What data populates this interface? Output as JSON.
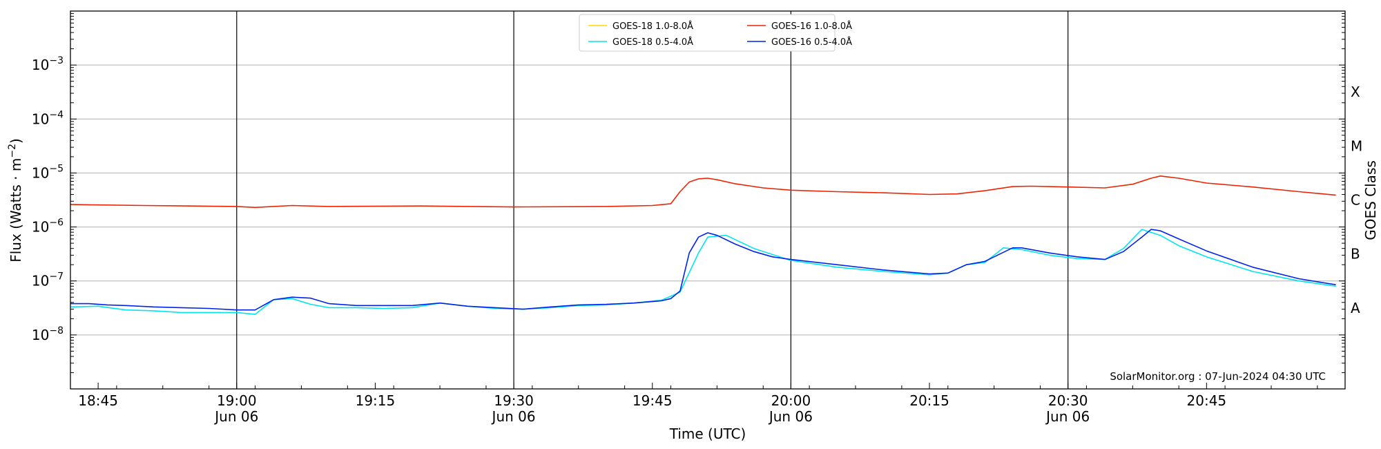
{
  "chart_data": {
    "type": "line",
    "title": "",
    "xlabel": "Time (UTC)",
    "ylabel": "Flux (Watts · m",
    "ylabel_sup": "−2",
    "ylabel_tail": ")",
    "y2label": "GOES Class",
    "y_scale": "log",
    "xlim": [
      "2024-06-06 18:42",
      "2024-06-06 21:00"
    ],
    "ylim": [
      1e-09,
      0.01
    ],
    "grid": "horizontal",
    "legend_position": "top-center",
    "credit": "SolarMonitor.org : 07-Jun-2024 04:30 UTC",
    "x_ticks": [
      {
        "time": "2024-06-06 18:45",
        "label": "18:45",
        "date": ""
      },
      {
        "time": "2024-06-06 19:00",
        "label": "19:00",
        "date": "Jun 06"
      },
      {
        "time": "2024-06-06 19:15",
        "label": "19:15",
        "date": ""
      },
      {
        "time": "2024-06-06 19:30",
        "label": "19:30",
        "date": "Jun 06"
      },
      {
        "time": "2024-06-06 19:45",
        "label": "19:45",
        "date": ""
      },
      {
        "time": "2024-06-06 20:00",
        "label": "20:00",
        "date": "Jun 06"
      },
      {
        "time": "2024-06-06 20:15",
        "label": "20:15",
        "date": ""
      },
      {
        "time": "2024-06-06 20:30",
        "label": "20:30",
        "date": "Jun 06"
      },
      {
        "time": "2024-06-06 20:45",
        "label": "20:45",
        "date": ""
      }
    ],
    "vertical_markers": [
      "2024-06-06 19:00",
      "2024-06-06 19:30",
      "2024-06-06 20:00",
      "2024-06-06 20:30"
    ],
    "y_ticks": [
      {
        "value": 1e-08,
        "base": "10",
        "exp": "−8"
      },
      {
        "value": 1e-07,
        "base": "10",
        "exp": "−7"
      },
      {
        "value": 1e-06,
        "base": "10",
        "exp": "−6"
      },
      {
        "value": 1e-05,
        "base": "10",
        "exp": "−5"
      },
      {
        "value": 0.0001,
        "base": "10",
        "exp": "−4"
      },
      {
        "value": 0.001,
        "base": "10",
        "exp": "−3"
      }
    ],
    "goes_classes": [
      {
        "label": "A",
        "flux": 1e-08
      },
      {
        "label": "B",
        "flux": 1e-07
      },
      {
        "label": "C",
        "flux": 1e-06
      },
      {
        "label": "M",
        "flux": 1e-05
      },
      {
        "label": "X",
        "flux": 0.0001
      }
    ],
    "series": [
      {
        "name": "GOES-18 1.0-8.0Å",
        "color": "#ffd700",
        "x": [
          "2024-06-06 18:42"
        ],
        "y": [
          2.5e-06
        ]
      },
      {
        "name": "GOES-18 0.5-4.0Å",
        "color": "#00e5ee",
        "x": [
          "2024-06-06 18:42",
          "2024-06-06 18:45",
          "2024-06-06 18:48",
          "2024-06-06 18:51",
          "2024-06-06 18:54",
          "2024-06-06 18:57",
          "2024-06-06 19:00",
          "2024-06-06 19:02",
          "2024-06-06 19:04",
          "2024-06-06 19:06",
          "2024-06-06 19:08",
          "2024-06-06 19:10",
          "2024-06-06 19:13",
          "2024-06-06 19:16",
          "2024-06-06 19:19",
          "2024-06-06 19:22",
          "2024-06-06 19:25",
          "2024-06-06 19:28",
          "2024-06-06 19:31",
          "2024-06-06 19:34",
          "2024-06-06 19:37",
          "2024-06-06 19:40",
          "2024-06-06 19:43",
          "2024-06-06 19:46",
          "2024-06-06 19:48",
          "2024-06-06 19:50",
          "2024-06-06 19:51",
          "2024-06-06 19:53",
          "2024-06-06 19:56",
          "2024-06-06 20:00",
          "2024-06-06 20:05",
          "2024-06-06 20:10",
          "2024-06-06 20:15",
          "2024-06-06 20:17",
          "2024-06-06 20:19",
          "2024-06-06 20:21",
          "2024-06-06 20:23",
          "2024-06-06 20:25",
          "2024-06-06 20:28",
          "2024-06-06 20:31",
          "2024-06-06 20:34",
          "2024-06-06 20:36",
          "2024-06-06 20:38",
          "2024-06-06 20:40",
          "2024-06-06 20:42",
          "2024-06-06 20:45",
          "2024-06-06 20:50",
          "2024-06-06 20:55",
          "2024-06-06 20:59"
        ],
        "y": [
          3.3e-08,
          3.4e-08,
          2.9e-08,
          2.8e-08,
          2.6e-08,
          2.6e-08,
          2.6e-08,
          2.4e-08,
          4.5e-08,
          4.7e-08,
          3.7e-08,
          3.2e-08,
          3.2e-08,
          3.1e-08,
          3.2e-08,
          3.9e-08,
          3.4e-08,
          3.1e-08,
          3e-08,
          3.2e-08,
          3.5e-08,
          3.6e-08,
          3.9e-08,
          4.4e-08,
          6.2e-08,
          3.3e-07,
          6.5e-07,
          7e-07,
          4e-07,
          2.4e-07,
          1.8e-07,
          1.5e-07,
          1.3e-07,
          1.4e-07,
          2e-07,
          2.2e-07,
          4.1e-07,
          3.8e-07,
          3e-07,
          2.6e-07,
          2.5e-07,
          4e-07,
          9e-07,
          7e-07,
          4.5e-07,
          2.8e-07,
          1.5e-07,
          1e-07,
          8e-08
        ]
      },
      {
        "name": "GOES-16 1.0-8.0Å",
        "color": "#ee2200",
        "x": [
          "2024-06-06 18:42",
          "2024-06-06 18:50",
          "2024-06-06 19:00",
          "2024-06-06 19:02",
          "2024-06-06 19:06",
          "2024-06-06 19:10",
          "2024-06-06 19:20",
          "2024-06-06 19:30",
          "2024-06-06 19:40",
          "2024-06-06 19:45",
          "2024-06-06 19:47",
          "2024-06-06 19:48",
          "2024-06-06 19:49",
          "2024-06-06 19:50",
          "2024-06-06 19:51",
          "2024-06-06 19:52",
          "2024-06-06 19:54",
          "2024-06-06 19:57",
          "2024-06-06 20:00",
          "2024-06-06 20:05",
          "2024-06-06 20:10",
          "2024-06-06 20:15",
          "2024-06-06 20:18",
          "2024-06-06 20:21",
          "2024-06-06 20:24",
          "2024-06-06 20:26",
          "2024-06-06 20:30",
          "2024-06-06 20:34",
          "2024-06-06 20:37",
          "2024-06-06 20:39",
          "2024-06-06 20:40",
          "2024-06-06 20:42",
          "2024-06-06 20:45",
          "2024-06-06 20:50",
          "2024-06-06 20:55",
          "2024-06-06 20:59"
        ],
        "y": [
          2.6e-06,
          2.5e-06,
          2.4e-06,
          2.3e-06,
          2.5e-06,
          2.4e-06,
          2.45e-06,
          2.35e-06,
          2.4e-06,
          2.5e-06,
          2.7e-06,
          4.5e-06,
          6.8e-06,
          7.8e-06,
          8e-06,
          7.5e-06,
          6.3e-06,
          5.3e-06,
          4.8e-06,
          4.5e-06,
          4.3e-06,
          4e-06,
          4.1e-06,
          4.7e-06,
          5.6e-06,
          5.7e-06,
          5.5e-06,
          5.3e-06,
          6.2e-06,
          8e-06,
          8.8e-06,
          8e-06,
          6.5e-06,
          5.5e-06,
          4.5e-06,
          3.9e-06
        ]
      },
      {
        "name": "GOES-16 0.5-4.0Å",
        "color": "#0022ee",
        "x": [
          "2024-06-06 18:42",
          "2024-06-06 18:44",
          "2024-06-06 18:46",
          "2024-06-06 18:48",
          "2024-06-06 18:51",
          "2024-06-06 18:54",
          "2024-06-06 18:57",
          "2024-06-06 19:00",
          "2024-06-06 19:02",
          "2024-06-06 19:04",
          "2024-06-06 19:06",
          "2024-06-06 19:08",
          "2024-06-06 19:10",
          "2024-06-06 19:13",
          "2024-06-06 19:16",
          "2024-06-06 19:19",
          "2024-06-06 19:22",
          "2024-06-06 19:25",
          "2024-06-06 19:28",
          "2024-06-06 19:31",
          "2024-06-06 19:34",
          "2024-06-06 19:37",
          "2024-06-06 19:40",
          "2024-06-06 19:43",
          "2024-06-06 19:46",
          "2024-06-06 19:47",
          "2024-06-06 19:48",
          "2024-06-06 19:49",
          "2024-06-06 19:50",
          "2024-06-06 19:51",
          "2024-06-06 19:52",
          "2024-06-06 19:54",
          "2024-06-06 19:56",
          "2024-06-06 19:58",
          "2024-06-06 20:00",
          "2024-06-06 20:05",
          "2024-06-06 20:10",
          "2024-06-06 20:15",
          "2024-06-06 20:17",
          "2024-06-06 20:19",
          "2024-06-06 20:21",
          "2024-06-06 20:22",
          "2024-06-06 20:24",
          "2024-06-06 20:25",
          "2024-06-06 20:28",
          "2024-06-06 20:31",
          "2024-06-06 20:34",
          "2024-06-06 20:36",
          "2024-06-06 20:38",
          "2024-06-06 20:39",
          "2024-06-06 20:40",
          "2024-06-06 20:42",
          "2024-06-06 20:45",
          "2024-06-06 20:50",
          "2024-06-06 20:55",
          "2024-06-06 20:59"
        ],
        "y": [
          3.8e-08,
          3.8e-08,
          3.6e-08,
          3.5e-08,
          3.3e-08,
          3.2e-08,
          3.1e-08,
          2.9e-08,
          2.9e-08,
          4.5e-08,
          5e-08,
          4.8e-08,
          3.8e-08,
          3.5e-08,
          3.5e-08,
          3.5e-08,
          3.9e-08,
          3.4e-08,
          3.2e-08,
          3e-08,
          3.3e-08,
          3.6e-08,
          3.7e-08,
          3.9e-08,
          4.3e-08,
          4.7e-08,
          6.5e-08,
          3.3e-07,
          6.5e-07,
          7.8e-07,
          7e-07,
          4.8e-07,
          3.5e-07,
          2.8e-07,
          2.5e-07,
          2e-07,
          1.6e-07,
          1.35e-07,
          1.4e-07,
          2e-07,
          2.3e-07,
          2.8e-07,
          4.1e-07,
          4.1e-07,
          3.3e-07,
          2.8e-07,
          2.5e-07,
          3.5e-07,
          6.5e-07,
          9e-07,
          8.5e-07,
          6e-07,
          3.6e-07,
          1.8e-07,
          1.1e-07,
          8.5e-08
        ]
      }
    ],
    "legend_order": [
      0,
      1,
      2,
      3
    ]
  }
}
